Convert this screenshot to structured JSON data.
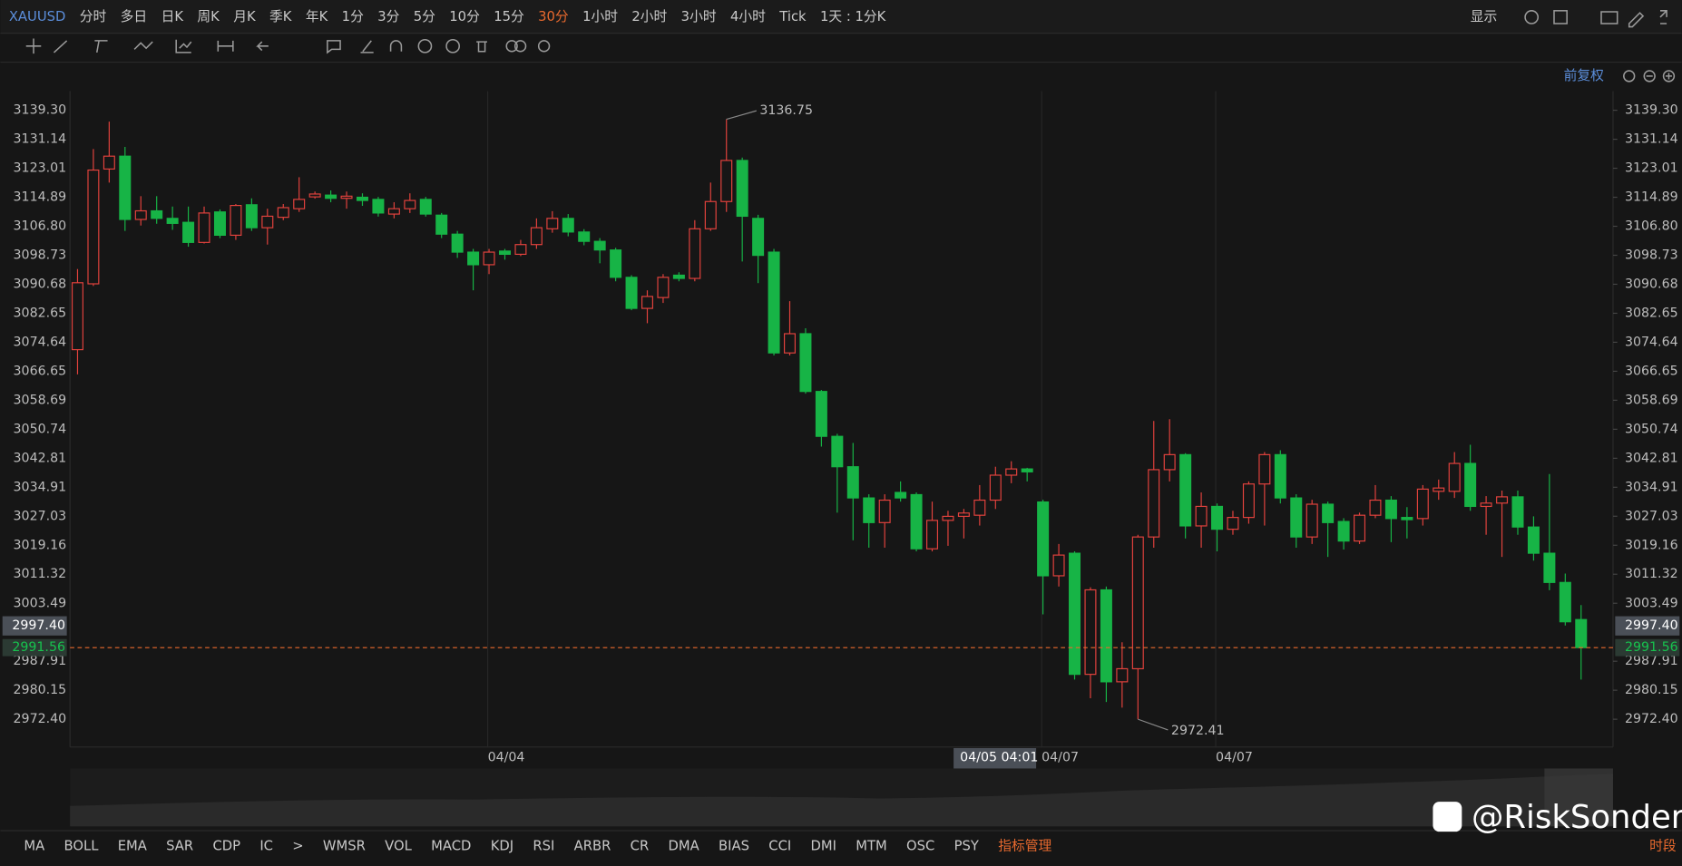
{
  "top_bar": {
    "symbol": "XAUUSD",
    "periods": [
      "分时",
      "多日",
      "日K",
      "周K",
      "月K",
      "季K",
      "年K",
      "1分",
      "3分",
      "5分",
      "10分",
      "15分",
      "30分",
      "1小时",
      "2小时",
      "3小时",
      "4小时",
      "Tick",
      "1天 : 1分K"
    ],
    "active_index": 12,
    "display": "显示"
  },
  "chart_data": {
    "type": "candlestick",
    "log_scale": true,
    "ylim": [
      2965.0,
      3144.7
    ],
    "yticks": [
      {
        "value": 3139.3,
        "label": "3139.30"
      },
      3131.14,
      3123.01,
      3114.89,
      {
        "value": 3106.8,
        "label": "3106.80"
      },
      3098.73,
      3090.68,
      3082.65,
      3074.64,
      3066.65,
      3058.69,
      3050.74,
      3042.81,
      3034.91,
      3027.03,
      3019.16,
      3011.32,
      3003.49,
      2987.91,
      2980.15,
      {
        "value": 2972.4,
        "label": "2972.40"
      }
    ],
    "categories": [
      null,
      null,
      null,
      null,
      null,
      null,
      null,
      null,
      null,
      null,
      null,
      null,
      null,
      null,
      null,
      null,
      null,
      null,
      null,
      null,
      null,
      null,
      null,
      null,
      null,
      null,
      null,
      "04/04",
      null,
      null,
      null,
      null,
      null,
      null,
      null,
      null,
      null,
      null,
      null,
      null,
      null,
      null,
      null,
      null,
      null,
      null,
      null,
      null,
      null,
      null,
      null,
      null,
      null,
      null,
      null,
      null,
      null,
      null,
      null,
      null,
      null,
      null,
      "04/07",
      null,
      null,
      null,
      null,
      null,
      null,
      null,
      null,
      null,
      null,
      "04/07",
      null,
      null,
      null,
      null,
      null,
      null,
      null,
      null,
      null,
      null,
      null,
      null,
      null,
      null,
      null,
      null,
      null,
      null,
      null,
      null,
      null,
      null
    ],
    "open": [
      3072.6,
      3090.8,
      3122.8,
      3126.4,
      3108.7,
      3111.1,
      3109.0,
      3107.9,
      3102.3,
      3110.8,
      3104.3,
      3112.8,
      3106.4,
      3109.3,
      3111.7,
      3115.0,
      3115.5,
      3114.6,
      3114.9,
      3114.3,
      3110.2,
      3111.7,
      3114.3,
      3109.9,
      3104.6,
      3099.6,
      3096.1,
      3099.9,
      3099.0,
      3101.7,
      3106.1,
      3109.0,
      3105.2,
      3102.6,
      3100.2,
      3092.6,
      3084.0,
      3087.0,
      3093.2,
      3092.3,
      3106.1,
      3113.7,
      3125.2,
      3109.0,
      3099.6,
      3071.7,
      3077.0,
      3061.1,
      3048.8,
      3040.5,
      3032.0,
      3025.3,
      3033.5,
      3032.9,
      3018.2,
      3025.9,
      3027.0,
      3027.3,
      3031.4,
      3038.2,
      3039.9,
      3030.9,
      3010.9,
      3017.0,
      2984.4,
      3007.1,
      2982.4,
      2985.9,
      3021.4,
      3039.7,
      3043.8,
      3024.4,
      3029.7,
      3023.5,
      3026.7,
      3035.8,
      3043.8,
      3032.0,
      3021.4,
      3030.3,
      3025.6,
      3020.3,
      3027.3,
      3031.4,
      3026.7,
      3026.4,
      3033.8,
      3033.8,
      3041.4,
      3029.7,
      3030.6,
      3032.3,
      3024.1,
      3017.0,
      3009.1,
      2999.1
    ],
    "high": [
      3094.9,
      3128.4,
      3136.1,
      3129.0,
      3115.2,
      3115.2,
      3112.3,
      3112.3,
      3112.3,
      3111.5,
      3113.0,
      3114.6,
      3111.7,
      3113.0,
      3120.5,
      3116.5,
      3116.8,
      3116.5,
      3116.0,
      3115.0,
      3113.5,
      3116.0,
      3115.0,
      3110.5,
      3105.5,
      3100.5,
      3100.5,
      3100.5,
      3103.0,
      3109.0,
      3111.0,
      3110.2,
      3106.0,
      3103.5,
      3100.8,
      3093.2,
      3089.0,
      3093.5,
      3094.0,
      3108.5,
      3119.0,
      3136.75,
      3126.0,
      3110.0,
      3100.5,
      3086.0,
      3078.5,
      3061.5,
      3049.5,
      3047.0,
      3033.0,
      3033.0,
      3036.5,
      3033.5,
      3031.0,
      3028.5,
      3029.0,
      3035.5,
      3040.5,
      3042.0,
      3040.2,
      3031.5,
      3019.5,
      3017.5,
      3007.8,
      3008.0,
      2993.0,
      3022.0,
      3053.0,
      3053.5,
      3044.2,
      3033.5,
      3030.5,
      3028.5,
      3036.5,
      3044.5,
      3045.0,
      3033.0,
      3031.5,
      3031.0,
      3026.5,
      3028.0,
      3035.5,
      3032.5,
      3029.5,
      3035.5,
      3037.0,
      3044.5,
      3046.5,
      3032.5,
      3034.0,
      3034.0,
      3027.0,
      3038.5,
      3011.5,
      3003.0
    ],
    "low": [
      3065.8,
      3090.2,
      3119.0,
      3105.5,
      3107.0,
      3107.5,
      3105.8,
      3101.1,
      3102.0,
      3103.5,
      3103.0,
      3105.5,
      3101.7,
      3108.5,
      3110.8,
      3114.5,
      3113.5,
      3111.7,
      3112.5,
      3109.5,
      3109.0,
      3110.5,
      3109.5,
      3103.5,
      3098.0,
      3089.0,
      3093.5,
      3097.5,
      3098.5,
      3100.5,
      3105.0,
      3104.0,
      3101.5,
      3096.5,
      3091.5,
      3083.5,
      3079.9,
      3085.5,
      3091.5,
      3091.5,
      3105.5,
      3110.8,
      3097.0,
      3091.0,
      3071.0,
      3071.0,
      3060.5,
      3046.0,
      3028.0,
      3020.5,
      3018.5,
      3018.5,
      3031.0,
      3017.5,
      3017.5,
      3019.0,
      3021.0,
      3024.5,
      3029.0,
      3036.0,
      3036.5,
      3000.5,
      3008.0,
      2983.0,
      2978.0,
      2977.0,
      2975.5,
      2972.41,
      3018.5,
      3036.5,
      3021.0,
      3018.5,
      3017.5,
      3022.0,
      3025.0,
      3024.5,
      3030.5,
      3018.5,
      3019.5,
      3016.0,
      3018.0,
      3019.5,
      3026.5,
      3020.0,
      3021.0,
      3024.5,
      3031.5,
      3032.0,
      3028.5,
      3022.0,
      3016.0,
      3022.0,
      3015.0,
      3007.0,
      2997.5,
      2983.0
    ],
    "close": [
      3091.1,
      3122.5,
      3126.4,
      3108.7,
      3111.1,
      3109.0,
      3107.6,
      3102.3,
      3110.5,
      3104.3,
      3112.6,
      3106.4,
      3109.6,
      3112.0,
      3114.3,
      3115.8,
      3114.6,
      3115.2,
      3114.0,
      3110.5,
      3111.7,
      3114.0,
      3110.2,
      3104.6,
      3099.6,
      3096.1,
      3099.6,
      3099.0,
      3101.7,
      3106.4,
      3109.0,
      3105.2,
      3102.6,
      3100.2,
      3092.6,
      3084.0,
      3087.3,
      3092.6,
      3092.3,
      3106.1,
      3113.7,
      3125.2,
      3109.6,
      3098.7,
      3071.7,
      3077.0,
      3061.1,
      3048.8,
      3040.5,
      3032.0,
      3025.3,
      3031.4,
      3032.0,
      3018.2,
      3025.9,
      3027.0,
      3027.9,
      3031.4,
      3038.2,
      3039.9,
      3039.1,
      3010.9,
      3016.5,
      2984.4,
      3007.1,
      2982.4,
      2985.9,
      3021.4,
      3039.7,
      3043.8,
      3024.4,
      3029.7,
      3023.5,
      3026.7,
      3035.8,
      3043.8,
      3032.0,
      3021.4,
      3030.3,
      3025.3,
      3020.3,
      3027.3,
      3031.4,
      3026.4,
      3026.1,
      3034.4,
      3034.7,
      3041.4,
      3029.7,
      3030.6,
      3032.3,
      3024.1,
      3017.0,
      3009.1,
      2998.5,
      2991.56
    ],
    "up_color": "#e2423d",
    "down_color": "#17b446",
    "adjust_label": "前复权",
    "last_price": 2991.56,
    "crosshair": {
      "price": {
        "value": 2997.4,
        "label": "2997.40"
      },
      "time_label": "04/05 04:01"
    },
    "max_label": 3136.75,
    "min_label": 2972.41
  },
  "indicator_bar": {
    "items": [
      "MA",
      "BOLL",
      "EMA",
      "SAR",
      "CDP",
      "IC",
      ">",
      "WMSR",
      "VOL",
      "MACD",
      "KDJ",
      "RSI",
      "ARBR",
      "CR",
      "DMA",
      "BIAS",
      "CCI",
      "DMI",
      "MTM",
      "OSC",
      "PSY"
    ],
    "manage": "指标管理",
    "session": "时段"
  },
  "watermark": "@RiskSonder"
}
